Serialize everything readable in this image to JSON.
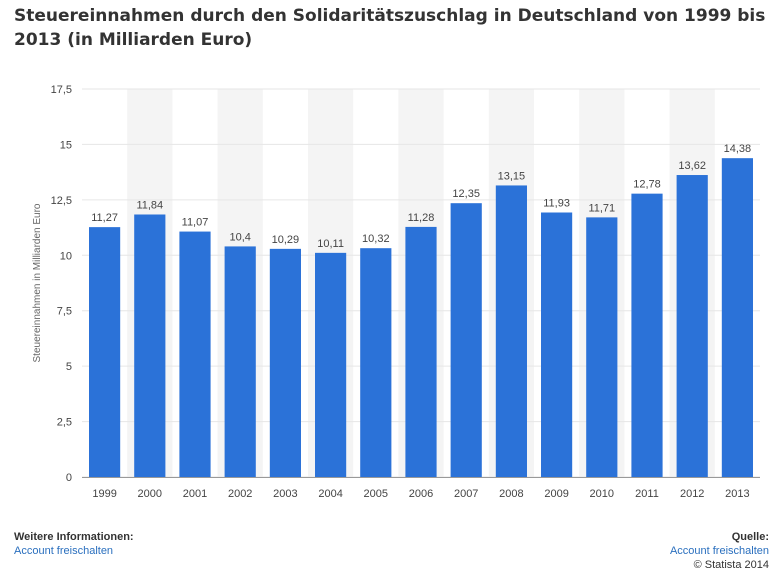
{
  "title": "Steuereinnahmen durch den Solidaritätszuschlag in Deutschland von 1999 bis 2013 (in Milliarden Euro)",
  "footer": {
    "more_info_label": "Weitere Informationen:",
    "more_info_link": "Account freischalten",
    "source_label": "Quelle:",
    "source_link": "Account freischalten",
    "copyright": "© Statista 2014"
  },
  "chart_data": {
    "type": "bar",
    "title": "Steuereinnahmen durch den Solidaritätszuschlag in Deutschland von 1999 bis 2013 (in Milliarden Euro)",
    "xlabel": "",
    "ylabel": "Steuereinnahmen in Milliarden Euro",
    "categories": [
      "1999",
      "2000",
      "2001",
      "2002",
      "2003",
      "2004",
      "2005",
      "2006",
      "2007",
      "2008",
      "2009",
      "2010",
      "2011",
      "2012",
      "2013"
    ],
    "values": [
      11.27,
      11.84,
      11.07,
      10.4,
      10.29,
      10.11,
      10.32,
      11.28,
      12.35,
      13.15,
      11.93,
      11.71,
      12.78,
      13.62,
      14.38
    ],
    "value_labels": [
      "11,27",
      "11,84",
      "11,07",
      "10,4",
      "10,29",
      "10,11",
      "10,32",
      "11,28",
      "12,35",
      "13,15",
      "11,93",
      "11,71",
      "12,78",
      "13,62",
      "14,38"
    ],
    "ylim": [
      0,
      17.5
    ],
    "yticks": [
      0,
      2.5,
      5,
      7.5,
      10,
      12.5,
      15,
      17.5
    ],
    "ytick_labels": [
      "0",
      "2,5",
      "5",
      "7,5",
      "10",
      "12,5",
      "15",
      "17,5"
    ],
    "bar_color": "#2b72d8",
    "alt_band_color": "#f4f4f4",
    "grid": true,
    "legend": "none"
  }
}
